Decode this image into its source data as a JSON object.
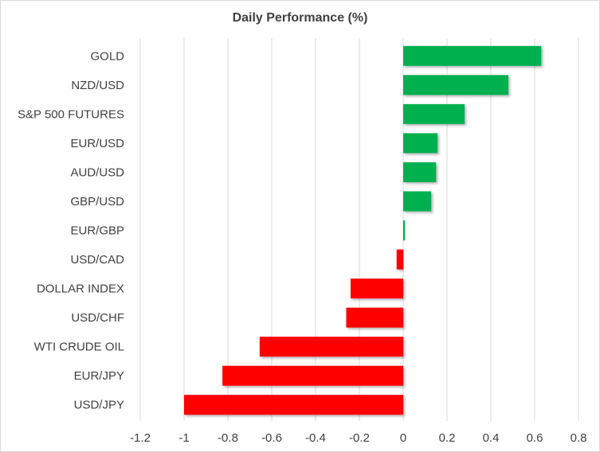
{
  "chart_data": {
    "type": "bar",
    "orientation": "horizontal",
    "title": "Daily Performance (%)",
    "xlabel": "",
    "ylabel": "",
    "xlim": [
      -1.2,
      0.8
    ],
    "xticks": [
      -1.2,
      -1,
      -0.8,
      -0.6,
      -0.4,
      -0.2,
      0,
      0.2,
      0.4,
      0.6,
      0.8
    ],
    "grid": true,
    "categories": [
      "GOLD",
      "NZD/USD",
      "S&P 500 FUTURES",
      "EUR/USD",
      "AUD/USD",
      "GBP/USD",
      "EUR/GBP",
      "USD/CAD",
      "DOLLAR INDEX",
      "USD/CHF",
      "WTI CRUDE OIL",
      "EUR/JPY",
      "USD/JPY"
    ],
    "values": [
      0.63,
      0.48,
      0.28,
      0.157,
      0.15,
      0.128,
      0.008,
      -0.03,
      -0.24,
      -0.26,
      -0.655,
      -0.825,
      -1.0
    ],
    "colors": {
      "positive": "#00b050",
      "negative": "#ff0000"
    }
  }
}
